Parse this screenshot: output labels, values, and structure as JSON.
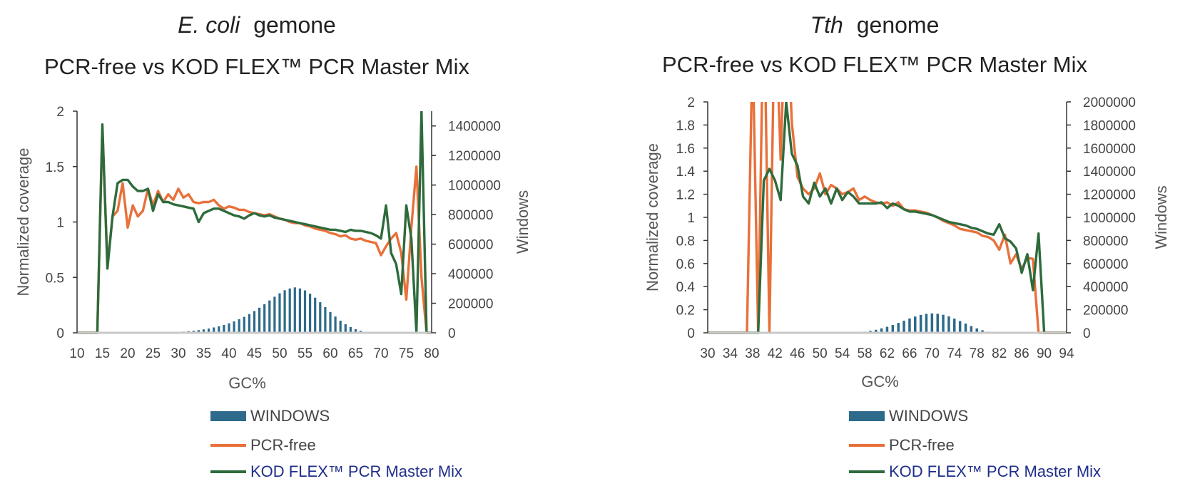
{
  "colors": {
    "windows": "#2d6a8b",
    "pcr_free": "#e8703a",
    "kod": "#2e6b3c",
    "axis": "#333333",
    "baseline": "#c8c8c8"
  },
  "chart_data": [
    {
      "type": "line",
      "title_italic": "E. coli",
      "title_rest": "gemone",
      "subtitle": "PCR-free vs KOD FLEX™ PCR Master Mix",
      "xlabel": "GC%",
      "ylabel": "Normalized coverage",
      "y2label": "Windows",
      "xlim": [
        10,
        80
      ],
      "ylim": [
        0,
        2
      ],
      "y2lim": [
        0,
        1500000
      ],
      "xticks": [
        "10",
        "15",
        "20",
        "25",
        "30",
        "35",
        "40",
        "45",
        "50",
        "55",
        "60",
        "65",
        "70",
        "75",
        "80"
      ],
      "yticks": [
        "0",
        "0.5",
        "1",
        "1.5",
        "2"
      ],
      "y2ticks": [
        "0",
        "200000",
        "400000",
        "600000",
        "800000",
        "1000000",
        "1200000",
        "1400000"
      ],
      "x": [
        10,
        11,
        12,
        13,
        14,
        15,
        16,
        17,
        18,
        19,
        20,
        21,
        22,
        23,
        24,
        25,
        26,
        27,
        28,
        29,
        30,
        31,
        32,
        33,
        34,
        35,
        36,
        37,
        38,
        39,
        40,
        41,
        42,
        43,
        44,
        45,
        46,
        47,
        48,
        49,
        50,
        51,
        52,
        53,
        54,
        55,
        56,
        57,
        58,
        59,
        60,
        61,
        62,
        63,
        64,
        65,
        66,
        67,
        68,
        69,
        70,
        71,
        72,
        73,
        74,
        75,
        76,
        77,
        78,
        79,
        80
      ],
      "series": [
        {
          "name": "WINDOWS",
          "kind": "bar",
          "axis": "y2",
          "values": [
            0,
            0,
            0,
            0,
            0,
            0,
            0,
            0,
            0,
            0,
            0,
            0,
            0,
            0,
            0,
            0,
            0,
            0,
            2000,
            4000,
            6000,
            8000,
            11000,
            14000,
            18000,
            23000,
            29000,
            36000,
            44000,
            53000,
            64000,
            77000,
            92000,
            108000,
            127000,
            147000,
            170000,
            194000,
            219000,
            244000,
            267000,
            288000,
            300000,
            307000,
            300000,
            287000,
            265000,
            238000,
            207000,
            174000,
            141000,
            110000,
            82000,
            58000,
            39000,
            24000,
            14000,
            7000,
            3000,
            1000,
            0,
            0,
            0,
            0,
            0,
            0,
            0,
            0,
            0,
            0,
            0
          ]
        },
        {
          "name": "PCR-free",
          "kind": "line",
          "axis": "y",
          "values": [
            0,
            0,
            0,
            0,
            0,
            1.85,
            0.6,
            1.05,
            1.1,
            1.35,
            0.95,
            1.15,
            1.05,
            1.1,
            1.3,
            1.15,
            1.28,
            1.18,
            1.25,
            1.2,
            1.3,
            1.22,
            1.25,
            1.18,
            1.17,
            1.18,
            1.18,
            1.2,
            1.15,
            1.12,
            1.14,
            1.13,
            1.11,
            1.11,
            1.09,
            1.08,
            1.07,
            1.06,
            1.07,
            1.05,
            1.03,
            1.02,
            1.0,
            0.99,
            0.99,
            0.97,
            0.96,
            0.94,
            0.93,
            0.92,
            0.9,
            0.89,
            0.87,
            0.88,
            0.85,
            0.84,
            0.85,
            0.83,
            0.82,
            0.81,
            0.7,
            0.78,
            0.85,
            0.9,
            0.72,
            0.3,
            0.95,
            1.5,
            0.5,
            0,
            0
          ]
        },
        {
          "name": "KOD FLEX™ PCR Master Mix",
          "kind": "line",
          "axis": "y",
          "values": [
            0,
            0,
            0,
            0,
            0,
            1.88,
            0.58,
            1.05,
            1.35,
            1.38,
            1.38,
            1.32,
            1.28,
            1.28,
            1.3,
            1.1,
            1.25,
            1.18,
            1.18,
            1.16,
            1.15,
            1.14,
            1.13,
            1.12,
            1.0,
            1.08,
            1.1,
            1.12,
            1.12,
            1.1,
            1.08,
            1.06,
            1.05,
            1.03,
            1.06,
            1.08,
            1.06,
            1.05,
            1.06,
            1.04,
            1.03,
            1.02,
            1.01,
            1.0,
            0.99,
            0.98,
            0.97,
            0.96,
            0.95,
            0.94,
            0.93,
            0.93,
            0.92,
            0.91,
            0.93,
            0.92,
            0.92,
            0.91,
            0.9,
            0.88,
            0.85,
            1.15,
            0.72,
            0.62,
            0.35,
            1.15,
            0.85,
            0,
            2.0,
            0,
            0
          ]
        }
      ],
      "legend": [
        "WINDOWS",
        "PCR-free",
        "KOD FLEX™ PCR Master Mix"
      ],
      "legend_position": "bottom"
    },
    {
      "type": "line",
      "title_italic": "Tth",
      "title_rest": "genome",
      "subtitle": "PCR-free vs KOD FLEX™ PCR Master Mix",
      "xlabel": "GC%",
      "ylabel": "Normalized coverage",
      "y2label": "Windows",
      "xlim": [
        30,
        94
      ],
      "ylim": [
        0,
        2
      ],
      "y2lim": [
        0,
        2000000
      ],
      "xticks": [
        "30",
        "34",
        "38",
        "42",
        "46",
        "50",
        "54",
        "58",
        "62",
        "66",
        "70",
        "74",
        "78",
        "82",
        "86",
        "90",
        "94"
      ],
      "yticks": [
        "0",
        "0.2",
        "0.4",
        "0.6",
        "0.8",
        "1",
        "1.2",
        "1.4",
        "1.6",
        "1.8",
        "2"
      ],
      "y2ticks": [
        "0",
        "200000",
        "400000",
        "600000",
        "800000",
        "1000000",
        "1200000",
        "1400000",
        "1600000",
        "1800000",
        "2000000"
      ],
      "x": [
        30,
        31,
        32,
        33,
        34,
        35,
        36,
        37,
        38,
        39,
        40,
        41,
        42,
        43,
        44,
        45,
        46,
        47,
        48,
        49,
        50,
        51,
        52,
        53,
        54,
        55,
        56,
        57,
        58,
        59,
        60,
        61,
        62,
        63,
        64,
        65,
        66,
        67,
        68,
        69,
        70,
        71,
        72,
        73,
        74,
        75,
        76,
        77,
        78,
        79,
        80,
        81,
        82,
        83,
        84,
        85,
        86,
        87,
        88,
        89,
        90,
        91,
        92,
        93,
        94
      ],
      "series": [
        {
          "name": "WINDOWS",
          "kind": "bar",
          "axis": "y2",
          "values": [
            0,
            0,
            0,
            0,
            0,
            0,
            0,
            0,
            0,
            0,
            0,
            0,
            0,
            0,
            0,
            0,
            0,
            0,
            0,
            0,
            0,
            0,
            0,
            0,
            0,
            0,
            0,
            5000,
            10000,
            17000,
            26000,
            38000,
            52000,
            68000,
            86000,
            105000,
            124000,
            141000,
            155000,
            164000,
            168000,
            165000,
            156000,
            142000,
            123000,
            102000,
            80000,
            58000,
            38000,
            22000,
            10000,
            4000,
            1000,
            0,
            0,
            0,
            0,
            0,
            0,
            0,
            0,
            0,
            0,
            0,
            0
          ]
        },
        {
          "name": "PCR-free",
          "kind": "line",
          "axis": "y",
          "values": [
            0,
            0,
            0,
            0,
            0,
            0,
            0,
            0,
            2.5,
            0,
            3.0,
            0,
            3.0,
            1.5,
            3.0,
            1.82,
            1.35,
            1.25,
            1.2,
            1.25,
            1.38,
            1.2,
            1.28,
            1.25,
            1.2,
            1.22,
            1.25,
            1.15,
            1.18,
            1.15,
            1.13,
            1.12,
            1.13,
            1.1,
            1.13,
            1.07,
            1.06,
            1.06,
            1.05,
            1.04,
            1.02,
            1.0,
            0.97,
            0.95,
            0.93,
            0.9,
            0.89,
            0.88,
            0.87,
            0.84,
            0.83,
            0.8,
            0.72,
            0.85,
            0.6,
            0.68,
            0.55,
            0.65,
            0.64,
            0,
            0,
            0,
            0,
            0,
            0
          ]
        },
        {
          "name": "KOD FLEX™ PCR Master Mix",
          "kind": "line",
          "axis": "y",
          "values": [
            0,
            0,
            0,
            0,
            0,
            0,
            0,
            0,
            0,
            0,
            1.32,
            1.42,
            1.32,
            1.15,
            2.0,
            1.55,
            1.45,
            1.18,
            1.12,
            1.3,
            1.18,
            1.25,
            1.12,
            1.25,
            1.15,
            1.22,
            1.18,
            1.12,
            1.12,
            1.12,
            1.12,
            1.13,
            1.08,
            1.12,
            1.1,
            1.07,
            1.05,
            1.05,
            1.04,
            1.03,
            1.02,
            1.0,
            0.98,
            0.96,
            0.95,
            0.94,
            0.93,
            0.91,
            0.9,
            0.88,
            0.86,
            0.85,
            0.94,
            0.82,
            0.79,
            0.73,
            0.52,
            0.68,
            0.37,
            0.86,
            0,
            0,
            0,
            0,
            0
          ]
        }
      ],
      "legend": [
        "WINDOWS",
        "PCR-free",
        "KOD FLEX™ PCR Master Mix"
      ],
      "legend_position": "bottom"
    }
  ]
}
